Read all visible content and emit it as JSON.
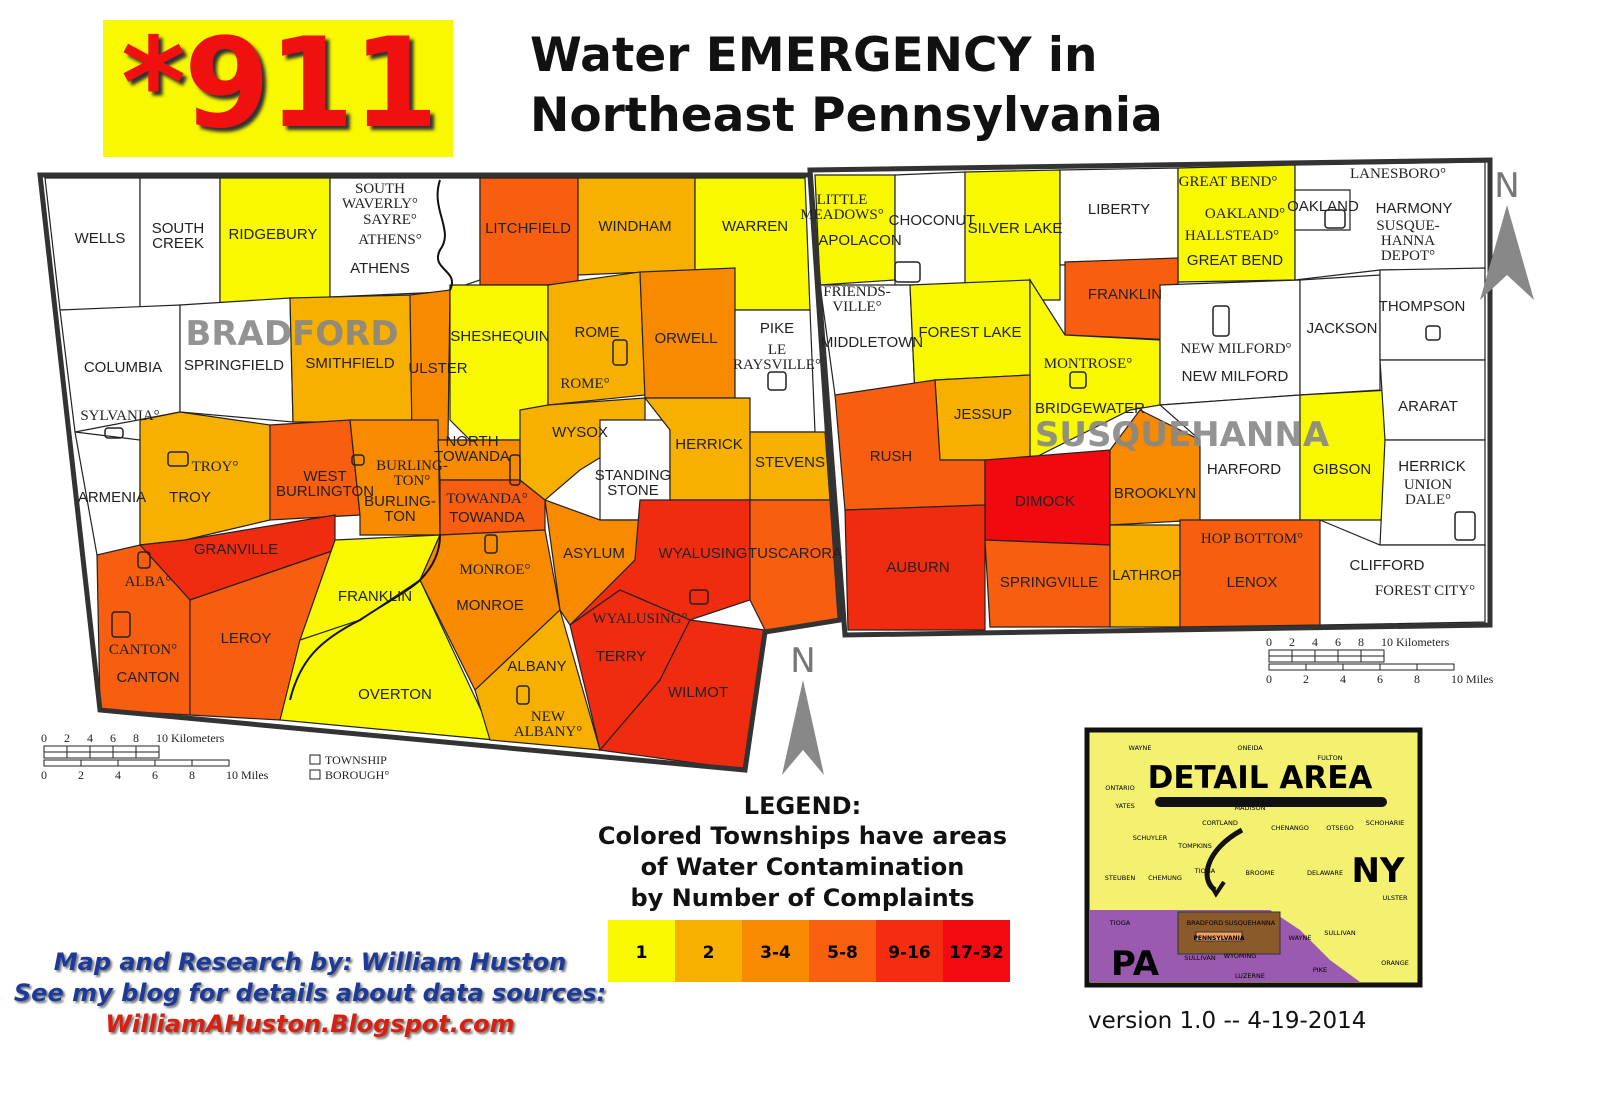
{
  "header": {
    "badge": "*911",
    "title_line1": "Water EMERGENCY in",
    "title_line2": "Northeast Pennsylvania"
  },
  "colors": {
    "levels": [
      "#ffffff",
      "#f8f800",
      "#f8b000",
      "#f88a00",
      "#f85e10",
      "#f02c10",
      "#f00a10"
    ],
    "badge_bg": "#f8f800",
    "badge_text": "#f01010"
  },
  "counties": {
    "bradford": "BRADFORD",
    "susquehanna": "SUSQUEHANNA"
  },
  "bradford": {
    "townships": [
      {
        "name": [
          "WELLS"
        ],
        "level": 0
      },
      {
        "name": [
          "SOUTH",
          "CREEK"
        ],
        "level": 0
      },
      {
        "name": [
          "RIDGEBURY"
        ],
        "level": 1
      },
      {
        "name": [
          "ATHENS"
        ],
        "level": 0
      },
      {
        "name": [
          "LITCHFIELD"
        ],
        "level": 4
      },
      {
        "name": [
          "WINDHAM"
        ],
        "level": 2
      },
      {
        "name": [
          "WARREN"
        ],
        "level": 1
      },
      {
        "name": [
          "COLUMBIA"
        ],
        "level": 0
      },
      {
        "name": [
          "SPRINGFIELD"
        ],
        "level": 0
      },
      {
        "name": [
          "SMITHFIELD"
        ],
        "level": 2
      },
      {
        "name": [
          "ULSTER"
        ],
        "level": 3
      },
      {
        "name": [
          "SHESHEQUIN"
        ],
        "level": 1
      },
      {
        "name": [
          "ROME"
        ],
        "level": 2
      },
      {
        "name": [
          "ORWELL"
        ],
        "level": 3
      },
      {
        "name": [
          "PIKE"
        ],
        "level": 0
      },
      {
        "name": [
          "ARMENIA"
        ],
        "level": 0
      },
      {
        "name": [
          "TROY"
        ],
        "level": 2
      },
      {
        "name": [
          "WEST",
          "BURLINGTON"
        ],
        "level": 4
      },
      {
        "name": [
          "BURLING-",
          "TON"
        ],
        "level": 3
      },
      {
        "name": [
          "NORTH",
          "TOWANDA"
        ],
        "level": 3
      },
      {
        "name": [
          "TOWANDA"
        ],
        "level": 4
      },
      {
        "name": [
          "WYSOX"
        ],
        "level": 2
      },
      {
        "name": [
          "STANDING",
          "STONE"
        ],
        "level": 0
      },
      {
        "name": [
          "HERRICK"
        ],
        "level": 2
      },
      {
        "name": [
          "STEVENS"
        ],
        "level": 2
      },
      {
        "name": [
          "GRANVILLE"
        ],
        "level": 5
      },
      {
        "name": [
          "CANTON"
        ],
        "level": 4
      },
      {
        "name": [
          "LEROY"
        ],
        "level": 4
      },
      {
        "name": [
          "FRANKLIN"
        ],
        "level": 1
      },
      {
        "name": [
          "OVERTON"
        ],
        "level": 1
      },
      {
        "name": [
          "MONROE"
        ],
        "level": 3
      },
      {
        "name": [
          "ASYLUM"
        ],
        "level": 3
      },
      {
        "name": [
          "WYALUSING"
        ],
        "level": 5
      },
      {
        "name": [
          "TUSCARORA"
        ],
        "level": 4
      },
      {
        "name": [
          "ALBANY"
        ],
        "level": 2
      },
      {
        "name": [
          "TERRY"
        ],
        "level": 5
      },
      {
        "name": [
          "WILMOT"
        ],
        "level": 5
      }
    ],
    "boroughs": [
      [
        "SOUTH",
        "WAVERLY°"
      ],
      [
        "SAYRE°"
      ],
      [
        "ATHENS°"
      ],
      [
        "ROME°"
      ],
      [
        "LE",
        "RAYSVILLE°"
      ],
      [
        "SYLVANIA°"
      ],
      [
        "TROY°"
      ],
      [
        "BURLING-",
        "TON°"
      ],
      [
        "TOWANDA°"
      ],
      [
        "ALBA°"
      ],
      [
        "CANTON°"
      ],
      [
        "MONROE°"
      ],
      [
        "WYALUSING°"
      ],
      [
        "NEW",
        "ALBANY°"
      ]
    ]
  },
  "susquehanna": {
    "townships": [
      {
        "name": [
          "APOLACON"
        ],
        "level": 1
      },
      {
        "name": [
          "CHOCONUT"
        ],
        "level": 0
      },
      {
        "name": [
          "SILVER LAKE"
        ],
        "level": 1
      },
      {
        "name": [
          "LIBERTY"
        ],
        "level": 0
      },
      {
        "name": [
          "GREAT BEND"
        ],
        "level": 1
      },
      {
        "name": [
          "HARMONY"
        ],
        "level": 0
      },
      {
        "name": [
          "OAKLAND"
        ],
        "level": 0
      },
      {
        "name": [
          "MIDDLETOWN"
        ],
        "level": 0
      },
      {
        "name": [
          "FOREST LAKE"
        ],
        "level": 1
      },
      {
        "name": [
          "FRANKLIN"
        ],
        "level": 4
      },
      {
        "name": [
          "BRIDGEWATER"
        ],
        "level": 1
      },
      {
        "name": [
          "NEW MILFORD"
        ],
        "level": 0
      },
      {
        "name": [
          "JACKSON"
        ],
        "level": 0
      },
      {
        "name": [
          "THOMPSON"
        ],
        "level": 0
      },
      {
        "name": [
          "JESSUP"
        ],
        "level": 2
      },
      {
        "name": [
          "RUSH"
        ],
        "level": 4
      },
      {
        "name": [
          "DIMOCK"
        ],
        "level": 6
      },
      {
        "name": [
          "BROOKLYN"
        ],
        "level": 3
      },
      {
        "name": [
          "HARFORD"
        ],
        "level": 0
      },
      {
        "name": [
          "GIBSON"
        ],
        "level": 1
      },
      {
        "name": [
          "ARARAT"
        ],
        "level": 0
      },
      {
        "name": [
          "HERRICK"
        ],
        "level": 0
      },
      {
        "name": [
          "AUBURN"
        ],
        "level": 5
      },
      {
        "name": [
          "SPRINGVILLE"
        ],
        "level": 4
      },
      {
        "name": [
          "LATHROP"
        ],
        "level": 2
      },
      {
        "name": [
          "LENOX"
        ],
        "level": 4
      },
      {
        "name": [
          "CLIFFORD"
        ],
        "level": 0
      }
    ],
    "boroughs": [
      [
        "LITTLE",
        "MEADOWS°"
      ],
      [
        "GREAT BEND°"
      ],
      [
        "OAKLAND°"
      ],
      [
        "HALLSTEAD°"
      ],
      [
        "LANESBORO°"
      ],
      [
        "SUSQUE-",
        "HANNA",
        "DEPOT°"
      ],
      [
        "FRIENDS-",
        "VILLE°"
      ],
      [
        "MONTROSE°"
      ],
      [
        "NEW MILFORD°"
      ],
      [
        "UNION",
        "DALE°"
      ],
      [
        "HOP BOTTOM°"
      ],
      [
        "FOREST CITY°"
      ]
    ]
  },
  "map_legend": {
    "township": "TOWNSHIP",
    "borough": "BOROUGH°",
    "north": "N"
  },
  "scale": {
    "km_ticks": [
      "0",
      "2",
      "4",
      "6",
      "8",
      "10 Kilometers"
    ],
    "mi_ticks": [
      "0",
      "2",
      "4",
      "6",
      "8",
      "10 Miles"
    ]
  },
  "legend": {
    "heading": "LEGEND:",
    "line1": "Colored Townships have areas",
    "line2": "of Water Contamination",
    "line3": "by Number of Complaints",
    "bins": [
      {
        "label": "1",
        "color": "#f8f800"
      },
      {
        "label": "2",
        "color": "#f8b000"
      },
      {
        "label": "3-4",
        "color": "#f88a00"
      },
      {
        "label": "5-8",
        "color": "#f86010"
      },
      {
        "label": "9-16",
        "color": "#f42c10"
      },
      {
        "label": "17-32",
        "color": "#f20a10"
      }
    ]
  },
  "inset": {
    "title": "DETAIL AREA",
    "ny": "NY",
    "pa": "PA",
    "state_label": "PENNSYLVANIA",
    "ny_counties": [
      "WAYNE",
      "ONEIDA",
      "FULTON",
      "ONTARIO",
      "YATES",
      "MADISON",
      "CORTLAND",
      "CHENANGO",
      "OTSEGO",
      "SCHOHARIE",
      "SCHUYLER",
      "TOMPKINS",
      "STEUBEN",
      "CHEMUNG",
      "TIOGA",
      "BROOME",
      "DELAWARE",
      "ULSTER",
      "SULLIVAN",
      "ORANGE"
    ],
    "pa_counties": [
      "TIOGA",
      "BRADFORD",
      "SUSQUEHANNA",
      "WAYNE",
      "SULLIVAN",
      "WYOMING",
      "LUZERNE",
      "PIKE"
    ]
  },
  "credits": {
    "line1": "Map and Research by: William Huston",
    "line2": "See my blog for details about data sources:",
    "link": "WilliamAHuston.Blogspot.com"
  },
  "version": "version 1.0  --  4-19-2014"
}
